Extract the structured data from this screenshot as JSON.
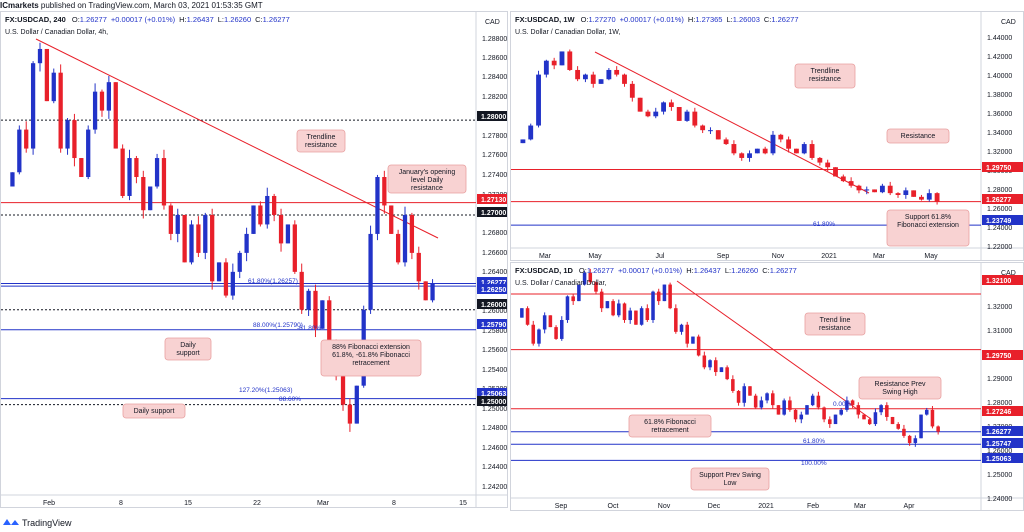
{
  "header": {
    "author": "ICmarkets",
    "published_text": " published on TradingView.com, March 03, 2021 01:53:35 GMT"
  },
  "footer": {
    "brand": "TradingView"
  },
  "colors": {
    "up": "#2233c8",
    "down": "#e8202a",
    "resistance": "#e8202a",
    "support": "#2233c8",
    "annotation_bg": "#f8d2d2"
  },
  "panels": [
    {
      "id": "p1",
      "legend": {
        "symbol": "FX:USDCAD, 240",
        "o_label": "O:",
        "o": "1.26277",
        "change": "+0.00017 (+0.01%)",
        "h_label": "H:",
        "h": "1.26437",
        "l_label": "L:",
        "l": "1.26260",
        "c_label": "C:",
        "c": "1.26277"
      },
      "subtitle": "U.S. Dollar / Canadian Dollar, 4h,",
      "currency": "CAD",
      "ticks": [
        "1.28800",
        "1.28600",
        "1.28400",
        "1.28200",
        "1.28000",
        "1.27800",
        "1.27600",
        "1.27400",
        "1.27200",
        "1.27000",
        "1.26800",
        "1.26600",
        "1.26400",
        "1.26200",
        "1.26000",
        "1.25800",
        "1.25600",
        "1.25400",
        "1.25200",
        "1.25000",
        "1.24800",
        "1.24600",
        "1.24400",
        "1.24200"
      ],
      "xticks": [
        "Feb",
        "8",
        "15",
        "22",
        "Mar",
        "8",
        "15"
      ],
      "price_tags": [
        {
          "text": "1.28000",
          "kind": "black"
        },
        {
          "text": "1.27130",
          "kind": "red"
        },
        {
          "text": "1.27000",
          "kind": "black"
        },
        {
          "text": "1.26277",
          "kind": "blue"
        },
        {
          "text": "1.26250",
          "kind": "blue"
        },
        {
          "text": "1.26000",
          "kind": "black"
        },
        {
          "text": "1.25790",
          "kind": "blue"
        },
        {
          "text": "1.25063",
          "kind": "blue"
        },
        {
          "text": "1.25000",
          "kind": "black"
        }
      ],
      "fib_labels": [
        "61.80%(1.26257)",
        "88.00%(1.25790)",
        "-61.80%",
        "127.20%(1.25063)",
        "88.60%"
      ],
      "annotations": [
        "Trendline resistance",
        "January's opening level Daily resistance",
        "Daily support",
        "88% Fibonacci extension 61.8%, -61.8% Fibonacci retracement",
        "Daily support"
      ]
    },
    {
      "id": "p2",
      "legend": {
        "symbol": "FX:USDCAD, 1W",
        "o_label": "O:",
        "o": "1.27270",
        "change": "+0.00017 (+0.01%)",
        "h_label": "H:",
        "h": "1.27365",
        "l_label": "L:",
        "l": "1.26003",
        "c_label": "C:",
        "c": "1.26277"
      },
      "subtitle": "U.S. Dollar / Canadian Dollar, 1W,",
      "currency": "CAD",
      "ticks": [
        "1.44000",
        "1.42000",
        "1.40000",
        "1.38000",
        "1.36000",
        "1.34000",
        "1.32000",
        "1.30000",
        "1.28000",
        "1.26000",
        "1.24000",
        "1.22000"
      ],
      "xticks": [
        "Mar",
        "May",
        "Jul",
        "Sep",
        "Nov",
        "2021",
        "Mar",
        "May"
      ],
      "price_tags": [
        {
          "text": "1.29750",
          "kind": "red"
        },
        {
          "text": "1.26277",
          "kind": "red"
        },
        {
          "text": "1.23749",
          "kind": "blue"
        }
      ],
      "fib_labels": [
        "61.80%"
      ],
      "annotations": [
        "Trendline resistance",
        "Resistance",
        "Support 61.8% Fibonacci extension"
      ]
    },
    {
      "id": "p3",
      "legend": {
        "symbol": "FX:USDCAD, 1D",
        "o_label": "O:",
        "o": "1.26277",
        "change": "+0.00017 (+0.01%)",
        "h_label": "H:",
        "h": "1.26437",
        "l_label": "L:",
        "l": "1.26260",
        "c_label": "C:",
        "c": "1.26277"
      },
      "subtitle": "U.S. Dollar / Canadian Dollar,",
      "currency": "CAD",
      "ticks": [
        "1.33000",
        "1.32000",
        "1.31000",
        "1.30000",
        "1.29000",
        "1.28000",
        "1.27000",
        "1.26000",
        "1.25000",
        "1.24000"
      ],
      "xticks": [
        "Sep",
        "Oct",
        "Nov",
        "Dec",
        "2021",
        "Feb",
        "Mar",
        "Apr"
      ],
      "price_tags": [
        {
          "text": "1.32100",
          "kind": "red"
        },
        {
          "text": "1.29750",
          "kind": "red"
        },
        {
          "text": "1.27246",
          "kind": "red"
        },
        {
          "text": "1.26277",
          "kind": "blue"
        },
        {
          "text": "1.25747",
          "kind": "blue"
        },
        {
          "text": "1.25063",
          "kind": "blue"
        }
      ],
      "fib_labels": [
        "0.00%",
        "61.80%",
        "100.00%"
      ],
      "annotations": [
        "Trend line resistance",
        "Resistance Prev Swing High",
        "61.8% Fibonacci retracement",
        "Support Prev Swing Low"
      ]
    }
  ],
  "chart_data": [
    {
      "type": "candlestick",
      "timeframe": "4h",
      "x_axis_labels": [
        "Feb",
        "8",
        "15",
        "22",
        "Mar",
        "8",
        "15"
      ],
      "ylim": [
        1.241,
        1.2895
      ],
      "levels": [
        {
          "value": 1.28,
          "style": "dotted"
        },
        {
          "value": 1.2713,
          "style": "solid-red"
        },
        {
          "value": 1.27,
          "style": "dotted"
        },
        {
          "value": 1.26277,
          "style": "solid-blue"
        },
        {
          "value": 1.2625,
          "style": "solid-blue"
        },
        {
          "value": 1.26,
          "style": "dotted"
        },
        {
          "value": 1.2579,
          "style": "solid-blue"
        },
        {
          "value": 1.25063,
          "style": "solid-blue"
        },
        {
          "value": 1.25,
          "style": "dotted"
        }
      ],
      "trendline": [
        [
          0.05,
          1.2885
        ],
        [
          0.87,
          1.2675
        ]
      ],
      "closes": [
        1.2745,
        1.279,
        1.277,
        1.286,
        1.2875,
        1.282,
        1.285,
        1.277,
        1.28,
        1.276,
        1.274,
        1.279,
        1.283,
        1.281,
        1.284,
        1.277,
        1.272,
        1.276,
        1.274,
        1.2705,
        1.273,
        1.276,
        1.271,
        1.268,
        1.27,
        1.265,
        1.269,
        1.266,
        1.27,
        1.263,
        1.265,
        1.2615,
        1.264,
        1.266,
        1.268,
        1.271,
        1.269,
        1.272,
        1.27,
        1.267,
        1.269,
        1.264,
        1.26,
        1.262,
        1.258,
        1.261,
        1.256,
        1.253,
        1.25,
        1.248,
        1.252,
        1.26,
        1.268,
        1.274,
        1.271,
        1.268,
        1.265,
        1.27,
        1.266,
        1.263,
        1.261,
        1.2628
      ]
    },
    {
      "type": "candlestick",
      "timeframe": "1W",
      "x_axis_labels": [
        "Mar",
        "May",
        "Jul",
        "Sep",
        "Nov",
        "2021",
        "Mar",
        "May"
      ],
      "ylim": [
        1.216,
        1.446
      ],
      "levels": [
        {
          "value": 1.2975,
          "style": "solid-red"
        },
        {
          "value": 1.26277,
          "style": "solid-red"
        },
        {
          "value": 1.23749,
          "style": "solid-blue"
        }
      ],
      "trendline": [
        [
          0.17,
          1.427
        ],
        [
          0.7,
          1.271
        ]
      ],
      "closes": [
        1.33,
        1.345,
        1.4,
        1.415,
        1.41,
        1.425,
        1.405,
        1.395,
        1.4,
        1.39,
        1.395,
        1.405,
        1.4,
        1.39,
        1.375,
        1.36,
        1.355,
        1.36,
        1.37,
        1.365,
        1.35,
        1.36,
        1.345,
        1.34,
        1.34,
        1.33,
        1.325,
        1.315,
        1.31,
        1.315,
        1.32,
        1.315,
        1.335,
        1.33,
        1.32,
        1.315,
        1.325,
        1.31,
        1.305,
        1.3,
        1.29,
        1.285,
        1.28,
        1.275,
        1.276,
        1.273,
        1.28,
        1.272,
        1.27,
        1.275,
        1.268,
        1.265,
        1.272,
        1.2628
      ]
    },
    {
      "type": "candlestick",
      "timeframe": "1D",
      "x_axis_labels": [
        "Sep",
        "Oct",
        "Nov",
        "Dec",
        "2021",
        "Feb",
        "Mar",
        "Apr"
      ],
      "ylim": [
        1.236,
        1.3265
      ],
      "levels": [
        {
          "value": 1.321,
          "style": "solid-red"
        },
        {
          "value": 1.2975,
          "style": "solid-red"
        },
        {
          "value": 1.27246,
          "style": "solid-red"
        },
        {
          "value": 1.26277,
          "style": "solid-blue"
        },
        {
          "value": 1.25747,
          "style": "solid-blue"
        },
        {
          "value": 1.25063,
          "style": "solid-blue"
        }
      ],
      "trendline": [
        [
          0.34,
          1.3215
        ],
        [
          0.74,
          1.274
        ]
      ],
      "closes": [
        1.315,
        1.308,
        1.3,
        1.306,
        1.312,
        1.307,
        1.302,
        1.31,
        1.32,
        1.318,
        1.325,
        1.33,
        1.326,
        1.322,
        1.315,
        1.318,
        1.312,
        1.317,
        1.31,
        1.314,
        1.308,
        1.315,
        1.31,
        1.322,
        1.318,
        1.325,
        1.315,
        1.305,
        1.308,
        1.3,
        1.303,
        1.295,
        1.29,
        1.293,
        1.288,
        1.29,
        1.285,
        1.28,
        1.275,
        1.282,
        1.278,
        1.273,
        1.276,
        1.279,
        1.274,
        1.27,
        1.276,
        1.272,
        1.268,
        1.27,
        1.274,
        1.278,
        1.273,
        1.268,
        1.266,
        1.27,
        1.272,
        1.276,
        1.274,
        1.27,
        1.268,
        1.266,
        1.271,
        1.274,
        1.269,
        1.266,
        1.264,
        1.261,
        1.258,
        1.26,
        1.27,
        1.272,
        1.265,
        1.2628
      ]
    }
  ]
}
